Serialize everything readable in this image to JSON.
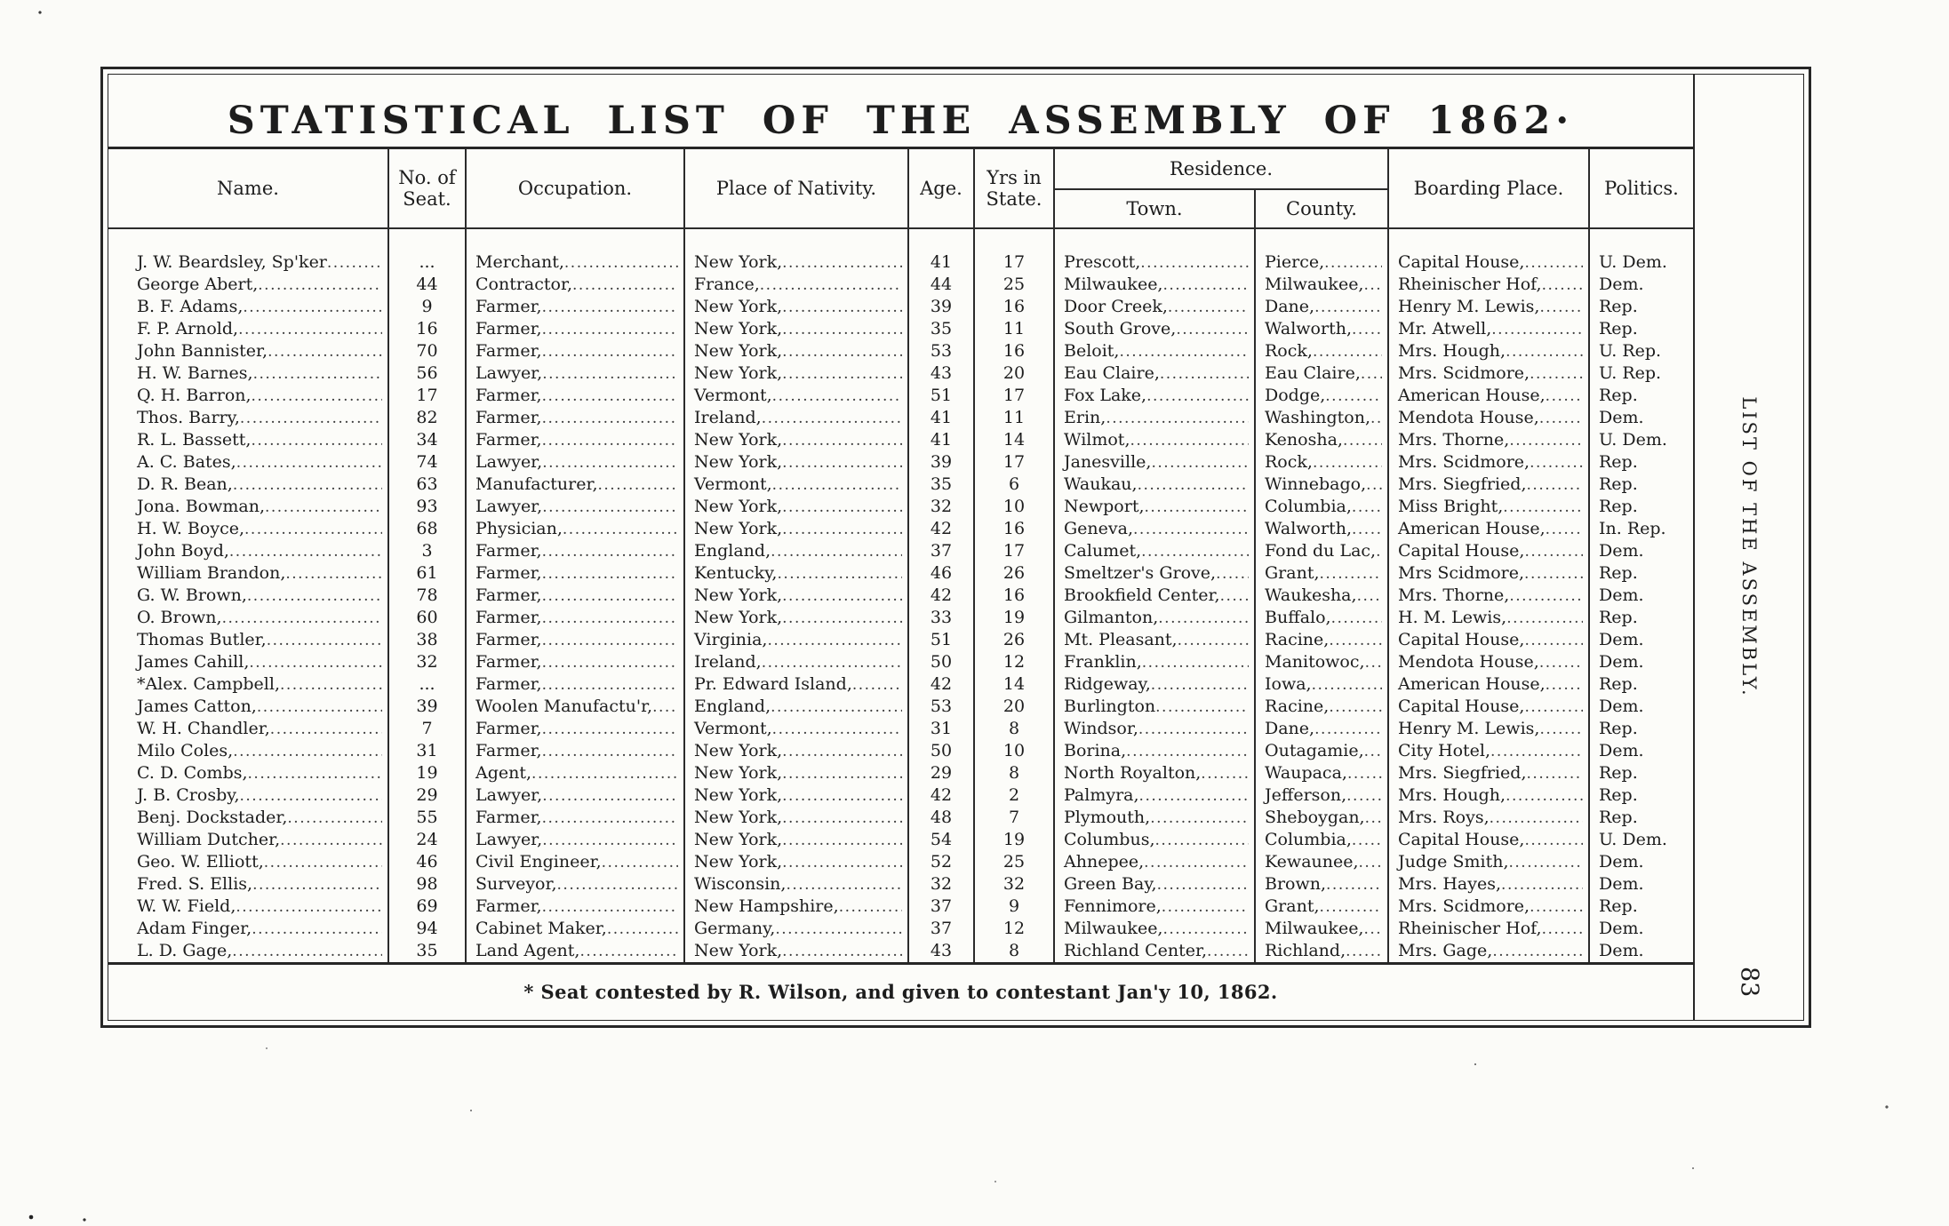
{
  "doc": {
    "title": "STATISTICAL LIST OF THE ASSEMBLY OF 1862·",
    "footnote": "* Seat contested by R. Wilson, and given to contestant Jan'y 10, 1862.",
    "side_label": "LIST OF THE ASSEMBLY.",
    "page_number": "83",
    "ink_color": "#1d1d1d",
    "paper_color": "#fbfbf8"
  },
  "table": {
    "headers": {
      "name": "Name.",
      "seat": "No. of Seat.",
      "occupation": "Occupation.",
      "nativity": "Place of Nativity.",
      "age": "Age.",
      "yrs_in_state": "Yrs in State.",
      "residence": "Residence.",
      "town": "Town.",
      "county": "County.",
      "boarding": "Boarding Place.",
      "politics": "Politics."
    },
    "rows": [
      [
        "J. W. Beardsley, Sp'ker",
        "...",
        "Merchant,",
        "New York,",
        "41",
        "17",
        "Prescott,",
        "Pierce,",
        "Capital House,",
        "U. Dem."
      ],
      [
        "George Abert,",
        "44",
        "Contractor,",
        "France,",
        "44",
        "25",
        "Milwaukee,",
        "Milwaukee,",
        "Rheinischer Hof,",
        "Dem."
      ],
      [
        "B. F. Adams,",
        "9",
        "Farmer,",
        "New York,",
        "39",
        "16",
        "Door Creek,",
        "Dane,",
        "Henry M. Lewis,",
        "Rep."
      ],
      [
        "F. P. Arnold,",
        "16",
        "Farmer,",
        "New York,",
        "35",
        "11",
        "South Grove,",
        "Walworth,",
        "Mr. Atwell,",
        "Rep."
      ],
      [
        "John Bannister,",
        "70",
        "Farmer,",
        "New York,",
        "53",
        "16",
        "Beloit,",
        "Rock,",
        "Mrs. Hough,",
        "U. Rep."
      ],
      [
        "H. W. Barnes,",
        "56",
        "Lawyer,",
        "New York,",
        "43",
        "20",
        "Eau Claire,",
        "Eau Claire,",
        "Mrs. Scidmore,",
        "U. Rep."
      ],
      [
        "Q. H. Barron,",
        "17",
        "Farmer,",
        "Vermont,",
        "51",
        "17",
        "Fox Lake,",
        "Dodge,",
        "American House,",
        "Rep."
      ],
      [
        "Thos. Barry,",
        "82",
        "Farmer,",
        "Ireland,",
        "41",
        "11",
        "Erin,",
        "Washington,",
        "Mendota House,",
        "Dem."
      ],
      [
        "R. L. Bassett,",
        "34",
        "Farmer,",
        "New York,",
        "41",
        "14",
        "Wilmot,",
        "Kenosha,",
        "Mrs. Thorne,",
        "U. Dem."
      ],
      [
        "A. C. Bates,",
        "74",
        "Lawyer,",
        "New York,",
        "39",
        "17",
        "Janesville,",
        "Rock,",
        "Mrs. Scidmore,",
        "Rep."
      ],
      [
        "D. R. Bean,",
        "63",
        "Manufacturer,",
        "Vermont,",
        "35",
        "6",
        "Waukau,",
        "Winnebago,",
        "Mrs. Siegfried,",
        "Rep."
      ],
      [
        "Jona. Bowman,",
        "93",
        "Lawyer,",
        "New York,",
        "32",
        "10",
        "Newport,",
        "Columbia,",
        "Miss Bright,",
        "Rep."
      ],
      [
        "H. W. Boyce,",
        "68",
        "Physician,",
        "New York,",
        "42",
        "16",
        "Geneva,",
        "Walworth,",
        "American House,",
        "In. Rep."
      ],
      [
        "John Boyd,",
        "3",
        "Farmer,",
        "England,",
        "37",
        "17",
        "Calumet,",
        "Fond du Lac,",
        "Capital House,",
        "Dem."
      ],
      [
        "William Brandon,",
        "61",
        "Farmer,",
        "Kentucky,",
        "46",
        "26",
        "Smeltzer's Grove,",
        "Grant,",
        "Mrs Scidmore,",
        "Rep."
      ],
      [
        "G. W. Brown,",
        "78",
        "Farmer,",
        "New York,",
        "42",
        "16",
        "Brookfield Center,",
        "Waukesha,",
        "Mrs. Thorne,",
        "Dem."
      ],
      [
        "O. Brown,",
        "60",
        "Farmer,",
        "New York,",
        "33",
        "19",
        "Gilmanton,",
        "Buffalo,",
        "H. M. Lewis,",
        "Rep."
      ],
      [
        "Thomas Butler,",
        "38",
        "Farmer,",
        "Virginia,",
        "51",
        "26",
        "Mt. Pleasant,",
        "Racine,",
        "Capital House,",
        "Dem."
      ],
      [
        "James Cahill,",
        "32",
        "Farmer,",
        "Ireland,",
        "50",
        "12",
        "Franklin,",
        "Manitowoc,",
        "Mendota House,",
        "Dem."
      ],
      [
        "*Alex. Campbell,",
        "...",
        "Farmer,",
        "Pr. Edward Island,",
        "42",
        "14",
        "Ridgeway,",
        "Iowa,",
        "American House,",
        "Rep."
      ],
      [
        "James Catton,",
        "39",
        "Woolen Manufactu'r,",
        "England,",
        "53",
        "20",
        "Burlington",
        "Racine,",
        "Capital House,",
        "Dem."
      ],
      [
        "W. H. Chandler,",
        "7",
        "Farmer,",
        "Vermont,",
        "31",
        "8",
        "Windsor,",
        "Dane,",
        "Henry M. Lewis,",
        "Rep."
      ],
      [
        "Milo Coles,",
        "31",
        "Farmer,",
        "New York,",
        "50",
        "10",
        "Borina,",
        "Outagamie,",
        "City Hotel,",
        "Dem."
      ],
      [
        "C. D. Combs,",
        "19",
        "Agent,",
        "New York,",
        "29",
        "8",
        "North Royalton,",
        "Waupaca,",
        "Mrs. Siegfried,",
        "Rep."
      ],
      [
        "J. B. Crosby,",
        "29",
        "Lawyer,",
        "New York,",
        "42",
        "2",
        "Palmyra,",
        "Jefferson,",
        "Mrs. Hough,",
        "Rep."
      ],
      [
        "Benj. Dockstader,",
        "55",
        "Farmer,",
        "New York,",
        "48",
        "7",
        "Plymouth,",
        "Sheboygan,",
        "Mrs. Roys,",
        "Rep."
      ],
      [
        "William Dutcher,",
        "24",
        "Lawyer,",
        "New York,",
        "54",
        "19",
        "Columbus,",
        "Columbia,",
        "Capital House,",
        "U. Dem."
      ],
      [
        "Geo. W. Elliott,",
        "46",
        "Civil Engineer,",
        "New York,",
        "52",
        "25",
        "Ahnepee,",
        "Kewaunee,",
        "Judge Smith,",
        "Dem."
      ],
      [
        "Fred. S. Ellis,",
        "98",
        "Surveyor,",
        "Wisconsin,",
        "32",
        "32",
        "Green Bay,",
        "Brown,",
        "Mrs. Hayes,",
        "Dem."
      ],
      [
        "W. W. Field,",
        "69",
        "Farmer,",
        "New Hampshire,",
        "37",
        "9",
        "Fennimore,",
        "Grant,",
        "Mrs. Scidmore,",
        "Rep."
      ],
      [
        "Adam Finger,",
        "94",
        "Cabinet Maker,",
        "Germany,",
        "37",
        "12",
        "Milwaukee,",
        "Milwaukee,",
        "Rheinischer Hof,",
        "Dem."
      ],
      [
        "L. D. Gage,",
        "35",
        "Land Agent,",
        "New York,",
        "43",
        "8",
        "Richland Center,",
        "Richland,",
        "Mrs. Gage,",
        "Dem."
      ]
    ]
  }
}
